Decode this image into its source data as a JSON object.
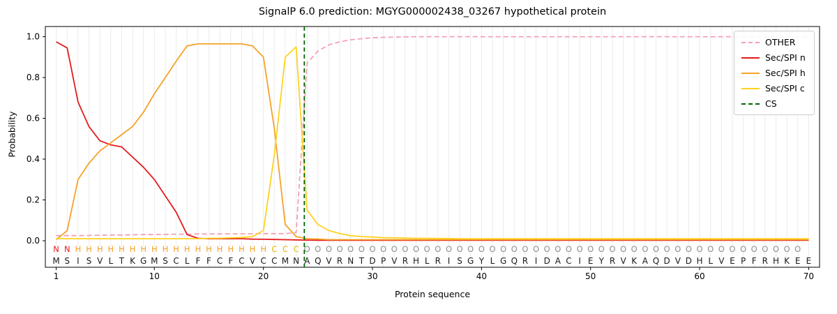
{
  "title": "SignalP 6.0 prediction: MGYG000002438_03267 hypothetical protein",
  "xlabel": "Protein sequence",
  "ylabel": "Probability",
  "legend": [
    {
      "label": "OTHER",
      "color": "#f4a0b5",
      "dash": true
    },
    {
      "label": "Sec/SPI n",
      "color": "#e41a1c",
      "dash": false
    },
    {
      "label": "Sec/SPI h",
      "color": "#f5a228",
      "dash": false
    },
    {
      "label": "Sec/SPI c",
      "color": "#ffd21f",
      "dash": false
    },
    {
      "label": "CS",
      "color": "#006400",
      "dash": true
    }
  ],
  "chart_data": {
    "type": "line",
    "title": "SignalP 6.0 prediction: MGYG000002438_03267 hypothetical protein",
    "xlabel": "Protein sequence",
    "ylabel": "Probability",
    "xlim": [
      0,
      71
    ],
    "ylim": [
      0.0,
      1.0
    ],
    "xticks": [
      1,
      10,
      20,
      30,
      40,
      50,
      60,
      70
    ],
    "yticks": [
      0.0,
      0.2,
      0.4,
      0.6,
      0.8,
      1.0
    ],
    "grid": "vertical-per-residue",
    "grid_color": "#ebebeb",
    "legend_position": "upper-right",
    "cs_x": 23.75,
    "cs_color": "#006400",
    "sequence": "MSISVLTKGMSCLFFCFCVCCMNAQVRNTDPVRHLRISGYLGQRIDACIEYRVKAQDVDHLVEPFRHKEE",
    "region_labels": "NNHHHHHHHHHHHHHHHHHHCCCOOOOOOOOOOOOOOOOOOOOOOOOOOOOOOOOOOOOOOOOOOOOOO",
    "region_colors": {
      "N": "#e41a1c",
      "H": "#f5a228",
      "C": "#e3b800",
      "O": "#8c8c8c"
    },
    "residue_color": "#1a1a1a",
    "series": [
      {
        "name": "OTHER",
        "color": "#f4a0b5",
        "style": "dashed",
        "values": [
          0.025,
          0.025,
          0.025,
          0.026,
          0.027,
          0.028,
          0.028,
          0.029,
          0.03,
          0.03,
          0.031,
          0.032,
          0.032,
          0.033,
          0.033,
          0.033,
          0.034,
          0.034,
          0.034,
          0.035,
          0.035,
          0.035,
          0.04,
          0.87,
          0.93,
          0.96,
          0.975,
          0.985,
          0.99,
          0.995,
          0.997,
          0.998,
          0.999,
          1,
          1,
          1,
          1,
          1,
          1,
          1,
          1,
          1,
          1,
          1,
          1,
          1,
          1,
          1,
          1,
          1,
          1,
          1,
          1,
          1,
          1,
          1,
          1,
          1,
          1,
          1,
          1,
          1,
          1,
          1,
          1,
          1,
          1,
          1,
          1,
          1
        ]
      },
      {
        "name": "Sec/SPI n",
        "color": "#e41a1c",
        "style": "solid",
        "values": [
          0.975,
          0.945,
          0.68,
          0.56,
          0.49,
          0.47,
          0.46,
          0.41,
          0.36,
          0.3,
          0.22,
          0.14,
          0.03,
          0.012,
          0.01,
          0.01,
          0.01,
          0.01,
          0.008,
          0.007,
          0.006,
          0.005,
          0.004,
          0.003,
          0.002,
          0.002,
          0.002,
          0.002,
          0.002,
          0.002,
          0.002,
          0.002,
          0.002,
          0.002,
          0.002,
          0.002,
          0.002,
          0.002,
          0.002,
          0.002,
          0.002,
          0.002,
          0.002,
          0.002,
          0.002,
          0.002,
          0.002,
          0.002,
          0.002,
          0.002,
          0.002,
          0.002,
          0.002,
          0.002,
          0.002,
          0.002,
          0.002,
          0.002,
          0.002,
          0.002,
          0.002,
          0.002,
          0.002,
          0.002,
          0.002,
          0.002,
          0.002,
          0.002,
          0.002,
          0.002
        ]
      },
      {
        "name": "Sec/SPI h",
        "color": "#f5a228",
        "style": "solid",
        "values": [
          0.005,
          0.05,
          0.3,
          0.38,
          0.44,
          0.48,
          0.52,
          0.56,
          0.63,
          0.72,
          0.8,
          0.88,
          0.955,
          0.965,
          0.965,
          0.965,
          0.965,
          0.965,
          0.955,
          0.9,
          0.55,
          0.08,
          0.02,
          0.01,
          0.008,
          0.005,
          0.005,
          0.005,
          0.005,
          0.005,
          0.005,
          0.005,
          0.005,
          0.005,
          0.005,
          0.005,
          0.005,
          0.005,
          0.005,
          0.005,
          0.005,
          0.005,
          0.005,
          0.005,
          0.005,
          0.005,
          0.005,
          0.005,
          0.005,
          0.005,
          0.005,
          0.005,
          0.005,
          0.005,
          0.005,
          0.005,
          0.005,
          0.005,
          0.005,
          0.005,
          0.005,
          0.005,
          0.005,
          0.005,
          0.005,
          0.005,
          0.005,
          0.005,
          0.005,
          0.005
        ]
      },
      {
        "name": "Sec/SPI c",
        "color": "#ffd21f",
        "style": "solid",
        "values": [
          0.01,
          0.01,
          0.01,
          0.01,
          0.01,
          0.01,
          0.01,
          0.01,
          0.01,
          0.01,
          0.01,
          0.01,
          0.01,
          0.01,
          0.012,
          0.012,
          0.014,
          0.016,
          0.02,
          0.05,
          0.42,
          0.9,
          0.95,
          0.15,
          0.08,
          0.05,
          0.035,
          0.025,
          0.02,
          0.018,
          0.015,
          0.014,
          0.013,
          0.012,
          0.012,
          0.011,
          0.011,
          0.01,
          0.01,
          0.01,
          0.01,
          0.01,
          0.01,
          0.01,
          0.01,
          0.01,
          0.01,
          0.01,
          0.01,
          0.01,
          0.01,
          0.01,
          0.01,
          0.01,
          0.01,
          0.01,
          0.01,
          0.01,
          0.01,
          0.01,
          0.01,
          0.01,
          0.01,
          0.01,
          0.01,
          0.01,
          0.01,
          0.01,
          0.01,
          0.01
        ]
      }
    ]
  }
}
